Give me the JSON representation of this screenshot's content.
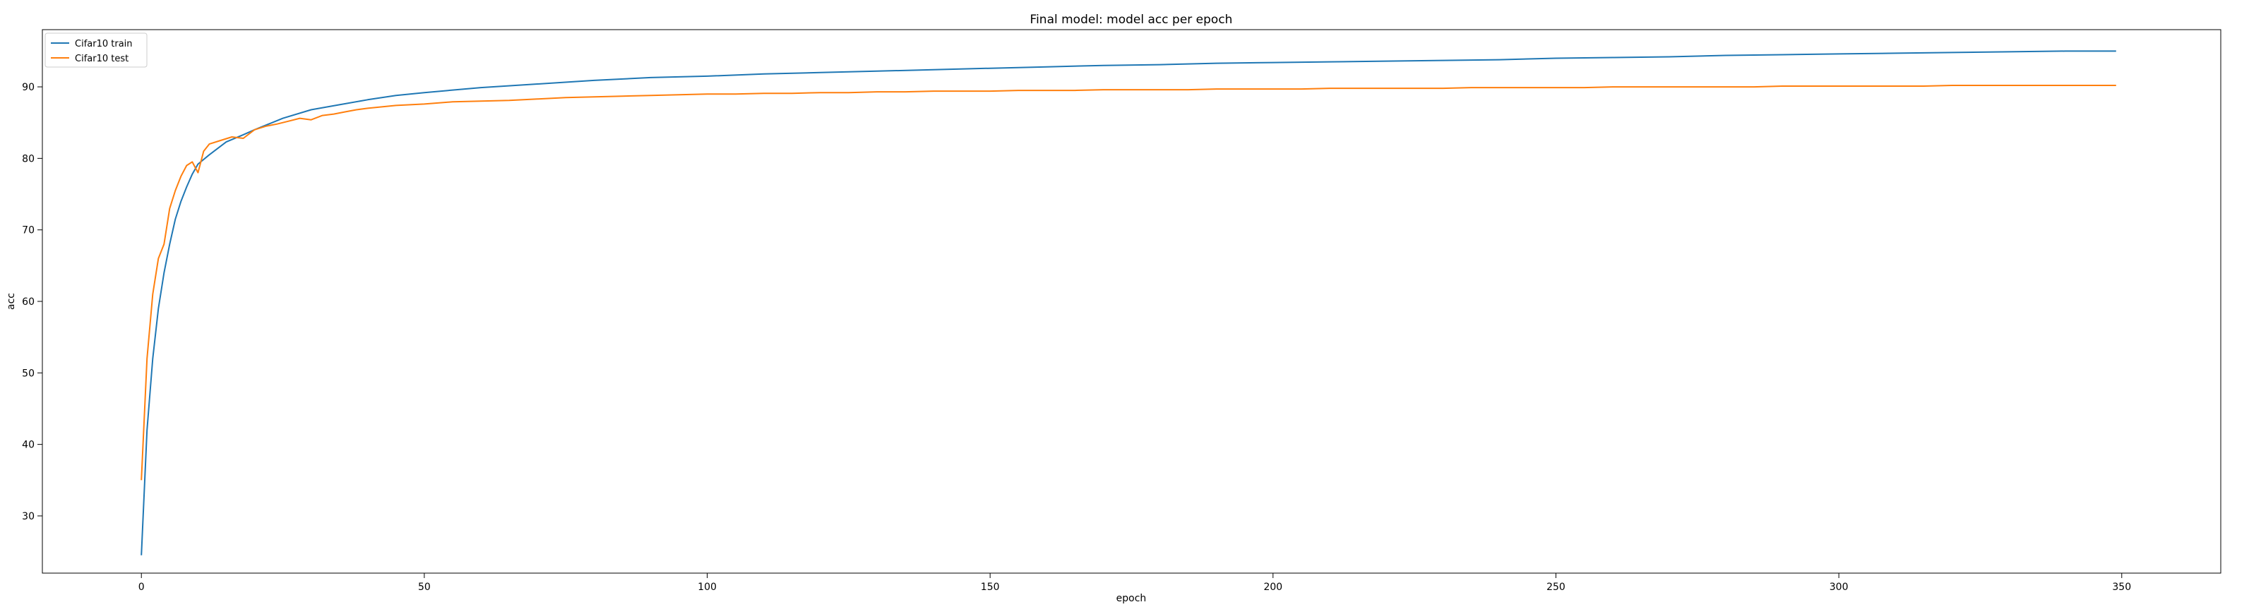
{
  "chart_data": {
    "type": "line",
    "title": "Final model: model acc per epoch",
    "xlabel": "epoch",
    "ylabel": "acc",
    "xlim": [
      -17.5,
      367.5
    ],
    "ylim": [
      22,
      98
    ],
    "xticks": [
      0,
      50,
      100,
      150,
      200,
      250,
      300,
      350
    ],
    "yticks": [
      30,
      40,
      50,
      60,
      70,
      80,
      90
    ],
    "grid": false,
    "legend_position": "top-left",
    "series": [
      {
        "name": "Cifar10 train",
        "color": "#1f77b4",
        "x": [
          0,
          1,
          2,
          3,
          4,
          5,
          6,
          7,
          8,
          9,
          10,
          12,
          15,
          18,
          20,
          25,
          30,
          35,
          40,
          45,
          50,
          60,
          70,
          80,
          90,
          100,
          110,
          120,
          130,
          140,
          150,
          160,
          170,
          180,
          190,
          200,
          210,
          220,
          230,
          240,
          250,
          260,
          270,
          280,
          290,
          300,
          310,
          320,
          330,
          340,
          349
        ],
        "y": [
          24.5,
          42,
          52,
          59,
          64,
          68,
          71.5,
          74,
          76,
          77.8,
          79.2,
          80.5,
          82.3,
          83.3,
          84.0,
          85.6,
          86.8,
          87.5,
          88.2,
          88.8,
          89.2,
          89.9,
          90.4,
          90.9,
          91.3,
          91.5,
          91.8,
          92.0,
          92.2,
          92.4,
          92.6,
          92.8,
          93.0,
          93.1,
          93.3,
          93.4,
          93.5,
          93.6,
          93.7,
          93.8,
          94.0,
          94.1,
          94.2,
          94.4,
          94.5,
          94.6,
          94.7,
          94.8,
          94.9,
          95.0,
          95.0
        ]
      },
      {
        "name": "Cifar10 test",
        "color": "#ff7f0e",
        "x": [
          0,
          1,
          2,
          3,
          4,
          5,
          6,
          7,
          8,
          9,
          10,
          11,
          12,
          14,
          16,
          18,
          20,
          22,
          24,
          26,
          28,
          30,
          32,
          34,
          36,
          38,
          40,
          45,
          50,
          55,
          60,
          65,
          70,
          75,
          80,
          85,
          90,
          95,
          100,
          105,
          110,
          115,
          120,
          125,
          130,
          135,
          140,
          145,
          150,
          155,
          160,
          165,
          170,
          175,
          180,
          185,
          190,
          195,
          200,
          205,
          210,
          215,
          220,
          225,
          230,
          235,
          240,
          245,
          250,
          255,
          260,
          265,
          270,
          275,
          280,
          285,
          290,
          295,
          300,
          305,
          310,
          315,
          320,
          325,
          330,
          335,
          340,
          345,
          349
        ],
        "y": [
          35,
          52,
          61,
          66,
          68,
          73,
          75.5,
          77.5,
          79,
          79.5,
          78,
          81,
          82,
          82.5,
          83,
          82.8,
          84,
          84.5,
          84.8,
          85.2,
          85.6,
          85.4,
          86,
          86.2,
          86.5,
          86.8,
          87,
          87.4,
          87.6,
          87.9,
          88,
          88.1,
          88.3,
          88.5,
          88.6,
          88.7,
          88.8,
          88.9,
          89,
          89,
          89.1,
          89.1,
          89.2,
          89.2,
          89.3,
          89.3,
          89.4,
          89.4,
          89.4,
          89.5,
          89.5,
          89.5,
          89.6,
          89.6,
          89.6,
          89.6,
          89.7,
          89.7,
          89.7,
          89.7,
          89.8,
          89.8,
          89.8,
          89.8,
          89.8,
          89.9,
          89.9,
          89.9,
          89.9,
          89.9,
          90,
          90,
          90,
          90,
          90,
          90,
          90.1,
          90.1,
          90.1,
          90.1,
          90.1,
          90.1,
          90.2,
          90.2,
          90.2,
          90.2,
          90.2,
          90.2,
          90.2
        ]
      }
    ]
  }
}
